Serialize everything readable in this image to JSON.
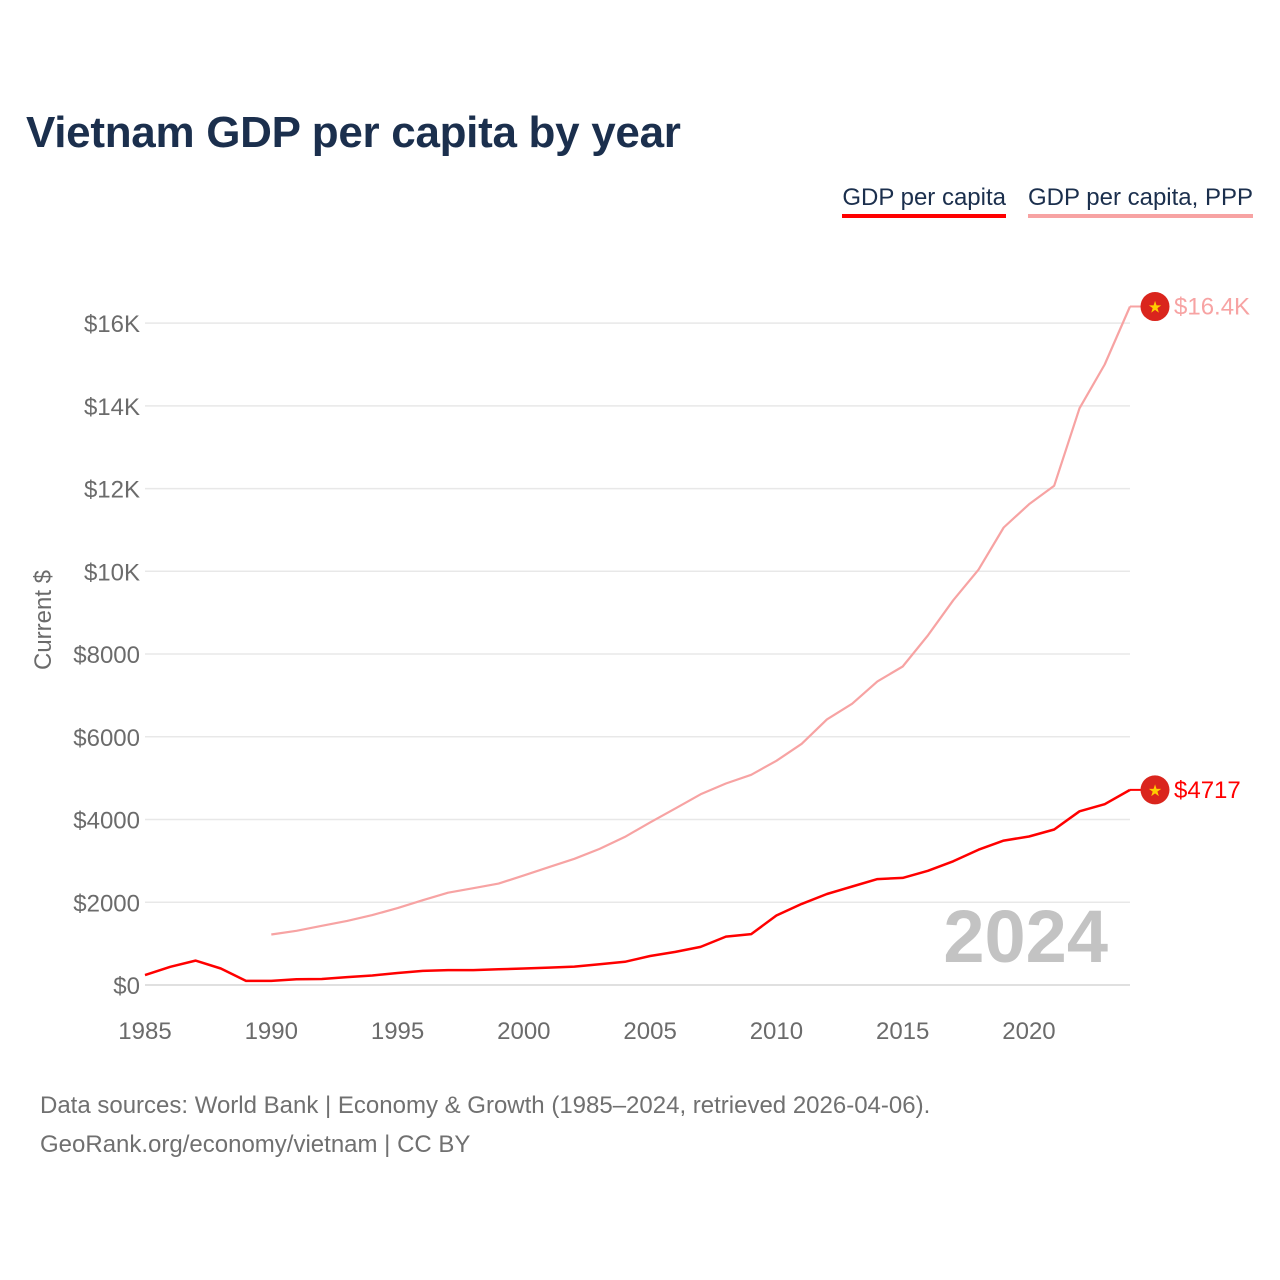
{
  "title": "Vietnam GDP per capita by year",
  "legend": {
    "gdp_label": "GDP per capita",
    "ppp_label": "GDP per capita, PPP"
  },
  "colors": {
    "gdp": "#ff0000",
    "ppp": "#f7a3a3",
    "title": "#1b2f4d",
    "flag_red": "#da251d",
    "flag_star": "#ffcd00"
  },
  "year_watermark": "2024",
  "footer": {
    "line1": "Data sources: World Bank | Economy & Growth (1985–2024, retrieved 2026-04-06).",
    "line2": "GeoRank.org/economy/vietnam | CC BY"
  },
  "chart_data": {
    "type": "line",
    "title": "Vietnam GDP per capita by year",
    "xlabel": "",
    "ylabel": "Current $",
    "xlim": [
      1985,
      2024
    ],
    "ylim": [
      0,
      16800
    ],
    "x_ticks": [
      1985,
      1990,
      1995,
      2000,
      2005,
      2010,
      2015,
      2020
    ],
    "y_ticks": [
      0,
      2000,
      4000,
      6000,
      8000,
      10000,
      12000,
      14000,
      16000
    ],
    "y_tick_labels": [
      "$0",
      "$2000",
      "$4000",
      "$6000",
      "$8000",
      "$10K",
      "$12K",
      "$14K",
      "$16K"
    ],
    "grid": true,
    "series": [
      {
        "name": "GDP per capita",
        "key": "gdp",
        "end_label": "$4717",
        "x": [
          1985,
          1986,
          1987,
          1988,
          1989,
          1990,
          1991,
          1992,
          1993,
          1994,
          1995,
          1996,
          1997,
          1998,
          1999,
          2000,
          2001,
          2002,
          2003,
          2004,
          2005,
          2006,
          2007,
          2008,
          2009,
          2010,
          2011,
          2012,
          2013,
          2014,
          2015,
          2016,
          2017,
          2018,
          2019,
          2020,
          2021,
          2022,
          2023,
          2024
        ],
        "values": [
          240,
          440,
          590,
          400,
          100,
          100,
          140,
          145,
          190,
          230,
          290,
          340,
          360,
          360,
          380,
          400,
          420,
          445,
          500,
          560,
          700,
          800,
          920,
          1170,
          1230,
          1680,
          1960,
          2200,
          2380,
          2560,
          2590,
          2760,
          2990,
          3270,
          3490,
          3590,
          3760,
          4200,
          4370,
          4717
        ]
      },
      {
        "name": "GDP per capita, PPP",
        "key": "ppp",
        "end_label": "$16.4K",
        "x": [
          1990,
          1991,
          1992,
          1993,
          1994,
          1995,
          1996,
          1997,
          1998,
          1999,
          2000,
          2001,
          2002,
          2003,
          2004,
          2005,
          2006,
          2007,
          2008,
          2009,
          2010,
          2011,
          2012,
          2013,
          2014,
          2015,
          2016,
          2017,
          2018,
          2019,
          2020,
          2021,
          2022,
          2023,
          2024
        ],
        "values": [
          1220,
          1310,
          1430,
          1550,
          1690,
          1860,
          2050,
          2230,
          2340,
          2450,
          2650,
          2850,
          3050,
          3290,
          3580,
          3930,
          4270,
          4610,
          4870,
          5080,
          5420,
          5830,
          6420,
          6800,
          7340,
          7700,
          8450,
          9300,
          10040,
          11060,
          11620,
          12070,
          13940,
          15000,
          16400
        ]
      }
    ]
  }
}
